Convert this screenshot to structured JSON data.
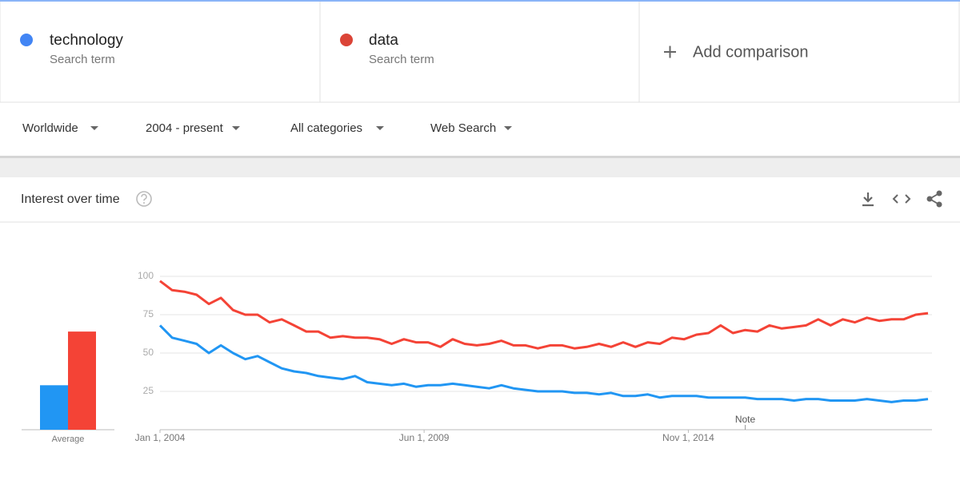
{
  "terms": [
    {
      "name": "technology",
      "subtitle": "Search term",
      "color": "#4285f4"
    },
    {
      "name": "data",
      "subtitle": "Search term",
      "color": "#db4437"
    }
  ],
  "add_comparison": "Add comparison",
  "filters": [
    "Worldwide",
    "2004 - present",
    "All categories",
    "Web Search"
  ],
  "chart_data": {
    "type": "line",
    "title": "Interest over time",
    "x": [
      "2004-01-01",
      "2004-04-01",
      "2004-07-01",
      "2004-10-01",
      "2005-01-01",
      "2005-04-01",
      "2005-07-01",
      "2005-10-01",
      "2006-01-01",
      "2006-04-01",
      "2006-07-01",
      "2006-10-01",
      "2007-01-01",
      "2007-04-01",
      "2007-07-01",
      "2007-10-01",
      "2008-01-01",
      "2008-04-01",
      "2008-07-01",
      "2008-10-01",
      "2009-01-01",
      "2009-04-01",
      "2009-07-01",
      "2009-10-01",
      "2010-01-01",
      "2010-04-01",
      "2010-07-01",
      "2010-10-01",
      "2011-01-01",
      "2011-04-01",
      "2011-07-01",
      "2011-10-01",
      "2012-01-01",
      "2012-04-01",
      "2012-07-01",
      "2012-10-01",
      "2013-01-01",
      "2013-04-01",
      "2013-07-01",
      "2013-10-01",
      "2014-01-01",
      "2014-04-01",
      "2014-07-01",
      "2014-10-01",
      "2015-01-01",
      "2015-04-01",
      "2015-07-01",
      "2015-10-01",
      "2016-01-01",
      "2016-04-01",
      "2016-07-01",
      "2016-10-01",
      "2017-01-01",
      "2017-04-01",
      "2017-07-01",
      "2017-10-01",
      "2018-01-01",
      "2018-04-01",
      "2018-07-01",
      "2018-10-01",
      "2019-01-01",
      "2019-04-01",
      "2019-07-01",
      "2019-10-01"
    ],
    "series": [
      {
        "name": "technology",
        "color": "#2196f3",
        "values": [
          68,
          60,
          58,
          56,
          50,
          55,
          50,
          46,
          48,
          44,
          40,
          38,
          37,
          35,
          34,
          33,
          35,
          31,
          30,
          29,
          30,
          28,
          29,
          29,
          30,
          29,
          28,
          27,
          29,
          27,
          26,
          25,
          25,
          25,
          24,
          24,
          23,
          24,
          22,
          22,
          23,
          21,
          22,
          22,
          22,
          21,
          21,
          21,
          21,
          20,
          20,
          20,
          19,
          20,
          20,
          19,
          19,
          19,
          20,
          19,
          18,
          19,
          19,
          20
        ]
      },
      {
        "name": "data",
        "color": "#f44336",
        "values": [
          97,
          91,
          90,
          88,
          82,
          86,
          78,
          75,
          75,
          70,
          72,
          68,
          64,
          64,
          60,
          61,
          60,
          60,
          59,
          56,
          59,
          57,
          57,
          54,
          59,
          56,
          55,
          56,
          58,
          55,
          55,
          53,
          55,
          55,
          53,
          54,
          56,
          54,
          57,
          54,
          57,
          56,
          60,
          59,
          62,
          63,
          68,
          63,
          65,
          64,
          68,
          66,
          67,
          68,
          72,
          68,
          72,
          70,
          73,
          71,
          72,
          72,
          75,
          76
        ]
      }
    ],
    "average": {
      "label": "Average",
      "values": [
        29,
        64
      ]
    },
    "xlim": [
      "2004-01-01",
      "2019-10-01"
    ],
    "xticks": [
      {
        "value": "2004-01-01",
        "label": "Jan 1, 2004"
      },
      {
        "value": "2009-06-01",
        "label": "Jun 1, 2009"
      },
      {
        "value": "2014-11-01",
        "label": "Nov 1, 2014"
      }
    ],
    "ylim": [
      0,
      100
    ],
    "yticks": [
      25,
      50,
      75,
      100
    ],
    "grid": true,
    "annotations": [
      {
        "text": "Note",
        "x": "2016-01-01"
      }
    ]
  }
}
